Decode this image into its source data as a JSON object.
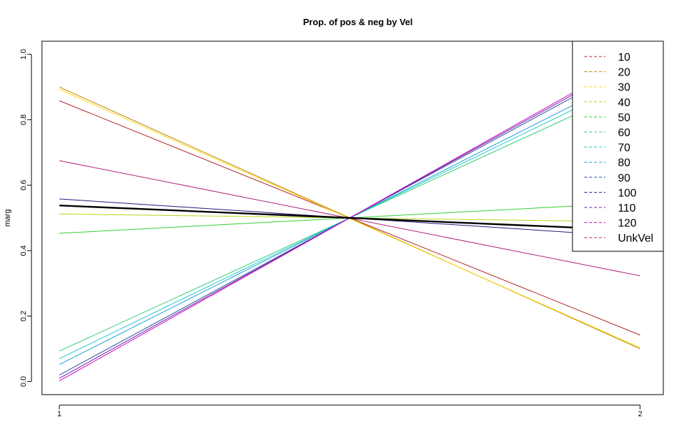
{
  "chart_data": {
    "type": "line",
    "title": "Prop. of pos & neg by Vel",
    "xlabel": "",
    "ylabel": "marg",
    "x": [
      1,
      2
    ],
    "xlim": [
      0.97,
      2.04
    ],
    "ylim": [
      -0.04,
      1.04
    ],
    "x_ticks": [
      "1",
      "2"
    ],
    "y_ticks": [
      "0.0",
      "0.2",
      "0.4",
      "0.6",
      "0.8",
      "1.0"
    ],
    "grid": false,
    "legend_position": "top-right",
    "series": [
      {
        "name": "10",
        "values": [
          0.858,
          0.142
        ],
        "color": "#b22222"
      },
      {
        "name": "20",
        "values": [
          0.9,
          0.1
        ],
        "color": "#b8860b"
      },
      {
        "name": "30",
        "values": [
          0.893,
          0.103
        ],
        "color": "#ffd700"
      },
      {
        "name": "40",
        "values": [
          0.512,
          0.488
        ],
        "color": "#b5d61a"
      },
      {
        "name": "50",
        "values": [
          0.453,
          0.547
        ],
        "color": "#32cd32"
      },
      {
        "name": "60",
        "values": [
          0.093,
          0.907
        ],
        "color": "#2ecc71"
      },
      {
        "name": "70",
        "values": [
          0.07,
          0.93
        ],
        "color": "#20c9c9"
      },
      {
        "name": "80",
        "values": [
          0.052,
          0.948
        ],
        "color": "#1ea0d8"
      },
      {
        "name": "90",
        "values": [
          0.02,
          0.98
        ],
        "color": "#1f4e9a"
      },
      {
        "name": "100",
        "values": [
          0.558,
          0.442
        ],
        "color": "#1a1a80"
      },
      {
        "name": "110",
        "values": [
          0.01,
          0.99
        ],
        "color": "#6a1b9a"
      },
      {
        "name": "120",
        "values": [
          0.002,
          0.998
        ],
        "color": "#cc00cc"
      },
      {
        "name": "UnkVel",
        "values": [
          0.675,
          0.323
        ],
        "color": "#b0207a"
      },
      {
        "name": "",
        "values": [
          0.538,
          0.462
        ],
        "color": "#000000",
        "bold": true,
        "in_legend": false
      }
    ]
  }
}
